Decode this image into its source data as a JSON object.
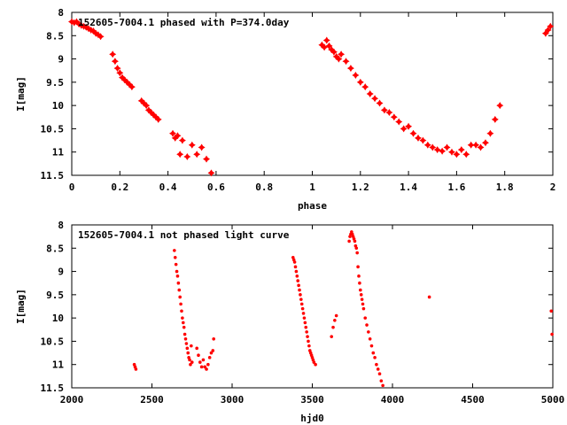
{
  "chart_data": [
    {
      "type": "scatter",
      "title": "152605-7004.1 phased with P=374.0day",
      "xlabel": "phase",
      "ylabel": "I[mag]",
      "xlim": [
        0,
        2
      ],
      "ylim": [
        11.5,
        8
      ],
      "y_inverted": true,
      "xticks": [
        "0",
        "0.2",
        "0.4",
        "0.6",
        "0.8",
        "1",
        "1.2",
        "1.4",
        "1.6",
        "1.8",
        "2"
      ],
      "yticks": [
        "8",
        "8.5",
        "9",
        "9.5",
        "10",
        "10.5",
        "11",
        "11.5"
      ],
      "color": "#ff0000",
      "marker": "star",
      "series": [
        {
          "x": [
            0.0,
            0.01,
            0.02,
            0.03,
            0.04,
            0.05,
            0.06,
            0.07,
            0.08,
            0.09,
            0.1,
            0.11,
            0.12,
            0.17,
            0.18,
            0.19,
            0.2,
            0.21,
            0.22,
            0.23,
            0.24,
            0.25,
            0.29,
            0.3,
            0.31,
            0.32,
            0.33,
            0.34,
            0.35,
            0.36,
            0.42,
            0.43,
            0.44,
            0.45,
            0.46,
            0.48,
            0.5,
            0.52,
            0.54,
            0.56,
            0.58,
            1.04,
            1.05,
            1.06,
            1.07,
            1.08,
            1.09,
            1.1,
            1.11,
            1.12,
            1.14,
            1.16,
            1.18,
            1.2,
            1.22,
            1.24,
            1.26,
            1.28,
            1.3,
            1.32,
            1.34,
            1.36,
            1.38,
            1.4,
            1.42,
            1.44,
            1.46,
            1.48,
            1.5,
            1.52,
            1.54,
            1.56,
            1.58,
            1.6,
            1.62,
            1.64,
            1.66,
            1.68,
            1.7,
            1.72,
            1.74,
            1.76,
            1.78,
            1.97,
            1.98,
            1.99
          ],
          "y": [
            8.2,
            8.22,
            8.2,
            8.25,
            8.28,
            8.3,
            8.32,
            8.35,
            8.38,
            8.4,
            8.45,
            8.48,
            8.52,
            8.9,
            9.05,
            9.2,
            9.3,
            9.4,
            9.45,
            9.5,
            9.55,
            9.6,
            9.9,
            9.95,
            10.0,
            10.1,
            10.15,
            10.2,
            10.25,
            10.3,
            10.6,
            10.7,
            10.65,
            11.05,
            10.75,
            11.1,
            10.85,
            11.05,
            10.9,
            11.15,
            11.45,
            8.7,
            8.75,
            8.6,
            8.72,
            8.8,
            8.85,
            8.95,
            9.0,
            8.9,
            9.05,
            9.2,
            9.35,
            9.5,
            9.6,
            9.75,
            9.85,
            9.95,
            10.1,
            10.15,
            10.25,
            10.35,
            10.5,
            10.45,
            10.6,
            10.7,
            10.75,
            10.85,
            10.9,
            10.95,
            10.98,
            10.9,
            11.0,
            11.05,
            10.95,
            11.05,
            10.85,
            10.85,
            10.9,
            10.8,
            10.6,
            10.3,
            10.0,
            8.45,
            8.38,
            8.3
          ]
        }
      ]
    },
    {
      "type": "scatter",
      "title": "152605-7004.1 not phased light curve",
      "xlabel": "hjd0",
      "ylabel": "I[mag]",
      "xlim": [
        2000,
        5000
      ],
      "ylim": [
        11.5,
        8
      ],
      "y_inverted": true,
      "xticks": [
        "2000",
        "2500",
        "3000",
        "3500",
        "4000",
        "4500",
        "5000"
      ],
      "yticks": [
        "8",
        "8.5",
        "9",
        "9.5",
        "10",
        "10.5",
        "11",
        "11.5"
      ],
      "color": "#ff0000",
      "marker": "dot",
      "series": [
        {
          "x": [
            2390,
            2395,
            2400,
            2640,
            2645,
            2650,
            2655,
            2660,
            2665,
            2670,
            2675,
            2680,
            2685,
            2690,
            2695,
            2700,
            2705,
            2710,
            2715,
            2720,
            2725,
            2730,
            2735,
            2740,
            2745,
            2750,
            2780,
            2790,
            2800,
            2810,
            2820,
            2830,
            2840,
            2850,
            2860,
            2870,
            2880,
            2885,
            3380,
            3385,
            3390,
            3395,
            3400,
            3405,
            3410,
            3415,
            3420,
            3425,
            3430,
            3435,
            3440,
            3445,
            3450,
            3455,
            3460,
            3465,
            3470,
            3475,
            3480,
            3485,
            3490,
            3495,
            3500,
            3505,
            3510,
            3520,
            3620,
            3630,
            3640,
            3650,
            3730,
            3735,
            3740,
            3745,
            3750,
            3755,
            3760,
            3765,
            3770,
            3775,
            3780,
            3785,
            3790,
            3795,
            3800,
            3805,
            3810,
            3815,
            3820,
            3830,
            3840,
            3850,
            3860,
            3870,
            3880,
            3890,
            3900,
            3910,
            3920,
            3930,
            3940,
            4230,
            4990,
            4995
          ],
          "y": [
            11.0,
            11.05,
            11.1,
            8.55,
            8.7,
            8.85,
            9.0,
            9.1,
            9.25,
            9.4,
            9.55,
            9.7,
            9.85,
            10.0,
            10.1,
            10.2,
            10.35,
            10.45,
            10.55,
            10.65,
            10.75,
            10.85,
            10.9,
            11.0,
            10.6,
            10.95,
            10.65,
            10.8,
            10.95,
            11.05,
            10.9,
            11.05,
            11.1,
            11.0,
            10.85,
            10.75,
            10.7,
            10.45,
            8.7,
            8.75,
            8.8,
            8.9,
            9.0,
            9.1,
            9.2,
            9.3,
            9.4,
            9.5,
            9.6,
            9.7,
            9.8,
            9.9,
            10.0,
            10.1,
            10.2,
            10.3,
            10.4,
            10.5,
            10.6,
            10.7,
            10.75,
            10.8,
            10.85,
            10.9,
            10.95,
            11.0,
            10.4,
            10.2,
            10.05,
            9.95,
            8.35,
            8.25,
            8.2,
            8.15,
            8.2,
            8.25,
            8.3,
            8.35,
            8.45,
            8.5,
            8.6,
            8.9,
            9.1,
            9.25,
            9.4,
            9.5,
            9.6,
            9.7,
            9.8,
            10.0,
            10.15,
            10.3,
            10.45,
            10.6,
            10.75,
            10.85,
            11.0,
            11.1,
            11.2,
            11.35,
            11.45,
            9.55,
            9.85,
            10.35
          ]
        }
      ]
    }
  ]
}
